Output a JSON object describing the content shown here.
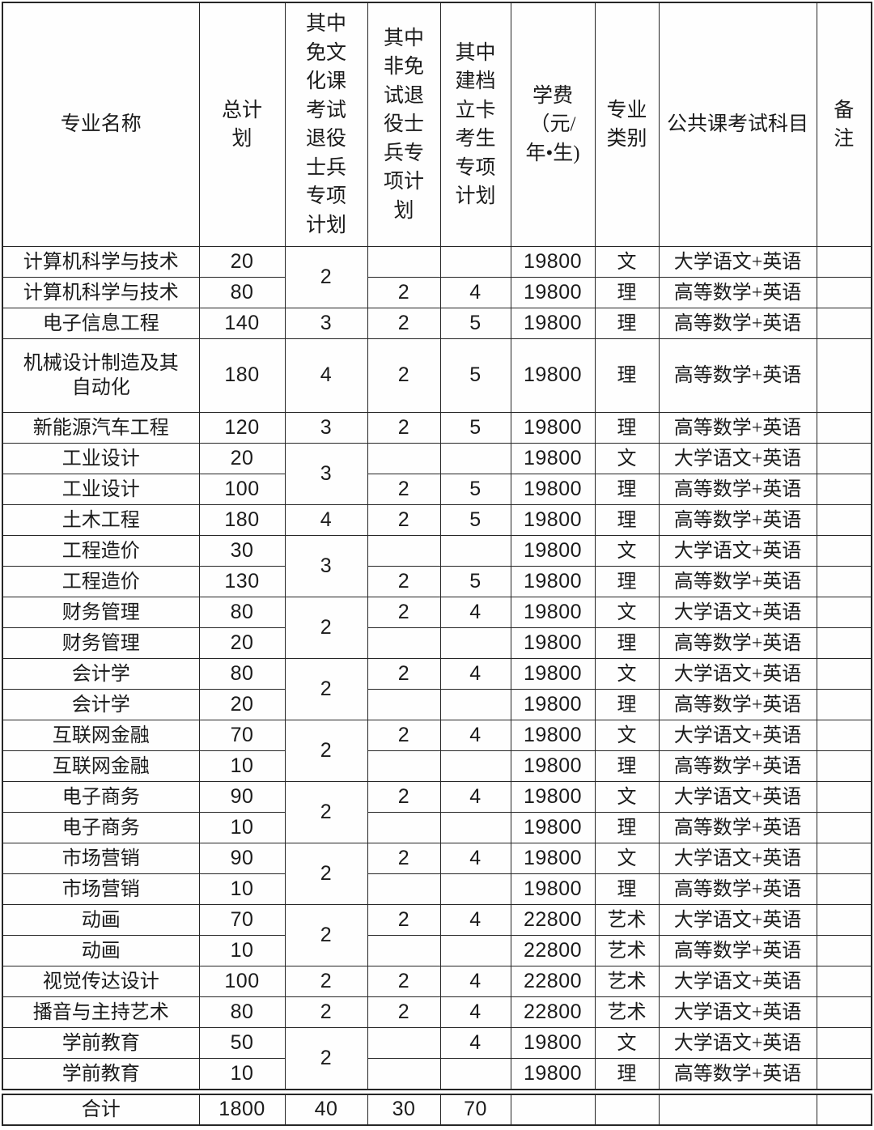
{
  "table": {
    "columns": [
      {
        "key": "major-name",
        "label": "专业名称"
      },
      {
        "key": "total-plan",
        "label": "总计\n划"
      },
      {
        "key": "exempt-veteran-plan",
        "label": "其中\n免文\n化课\n考试\n退役\n士兵\n专项\n计划"
      },
      {
        "key": "nonexempt-veteran-plan",
        "label": "其中\n非免\n试退\n役士\n兵专\n项计\n划"
      },
      {
        "key": "archive-card-plan",
        "label": "其中\n建档\n立卡\n考生\n专项\n计划"
      },
      {
        "key": "tuition",
        "label": "学费\n（元/\n年•生)"
      },
      {
        "key": "major-category",
        "label": "专业\n类别"
      },
      {
        "key": "exam-subjects",
        "label": "公共课考试科目"
      },
      {
        "key": "remarks",
        "label": "备\n注"
      }
    ],
    "rows": [
      {
        "cells": [
          {
            "t": "计算机科学与技术"
          },
          {
            "t": "20"
          },
          {
            "t": "2",
            "rs": 2
          },
          {
            "t": ""
          },
          {
            "t": ""
          },
          {
            "t": "19800"
          },
          {
            "t": "文"
          },
          {
            "t": "大学语文+英语"
          },
          {
            "t": ""
          }
        ]
      },
      {
        "cells": [
          {
            "t": "计算机科学与技术"
          },
          {
            "t": "80"
          },
          {
            "t": "2"
          },
          {
            "t": "4"
          },
          {
            "t": "19800"
          },
          {
            "t": "理"
          },
          {
            "t": "高等数学+英语"
          },
          {
            "t": ""
          }
        ]
      },
      {
        "cells": [
          {
            "t": "电子信息工程"
          },
          {
            "t": "140"
          },
          {
            "t": "3"
          },
          {
            "t": "2"
          },
          {
            "t": "5"
          },
          {
            "t": "19800"
          },
          {
            "t": "理"
          },
          {
            "t": "高等数学+英语"
          },
          {
            "t": ""
          }
        ]
      },
      {
        "cells": [
          {
            "t": "机械设计制造及其\n自动化"
          },
          {
            "t": "180"
          },
          {
            "t": "4"
          },
          {
            "t": "2"
          },
          {
            "t": "5"
          },
          {
            "t": "19800"
          },
          {
            "t": "理"
          },
          {
            "t": "高等数学+英语"
          },
          {
            "t": ""
          }
        ]
      },
      {
        "cells": [
          {
            "t": "新能源汽车工程"
          },
          {
            "t": "120"
          },
          {
            "t": "3"
          },
          {
            "t": "2"
          },
          {
            "t": "5"
          },
          {
            "t": "19800"
          },
          {
            "t": "理"
          },
          {
            "t": "高等数学+英语"
          },
          {
            "t": ""
          }
        ]
      },
      {
        "cells": [
          {
            "t": "工业设计"
          },
          {
            "t": "20"
          },
          {
            "t": "3",
            "rs": 2
          },
          {
            "t": ""
          },
          {
            "t": ""
          },
          {
            "t": "19800"
          },
          {
            "t": "文"
          },
          {
            "t": "大学语文+英语"
          },
          {
            "t": ""
          }
        ]
      },
      {
        "cells": [
          {
            "t": "工业设计"
          },
          {
            "t": "100"
          },
          {
            "t": "2"
          },
          {
            "t": "5"
          },
          {
            "t": "19800"
          },
          {
            "t": "理"
          },
          {
            "t": "高等数学+英语"
          },
          {
            "t": ""
          }
        ]
      },
      {
        "cells": [
          {
            "t": "土木工程"
          },
          {
            "t": "180"
          },
          {
            "t": "4"
          },
          {
            "t": "2"
          },
          {
            "t": "5"
          },
          {
            "t": "19800"
          },
          {
            "t": "理"
          },
          {
            "t": "高等数学+英语"
          },
          {
            "t": ""
          }
        ]
      },
      {
        "cells": [
          {
            "t": "工程造价"
          },
          {
            "t": "30"
          },
          {
            "t": "3",
            "rs": 2
          },
          {
            "t": ""
          },
          {
            "t": ""
          },
          {
            "t": "19800"
          },
          {
            "t": "文"
          },
          {
            "t": "大学语文+英语"
          },
          {
            "t": ""
          }
        ]
      },
      {
        "cells": [
          {
            "t": "工程造价"
          },
          {
            "t": "130"
          },
          {
            "t": "2"
          },
          {
            "t": "5"
          },
          {
            "t": "19800"
          },
          {
            "t": "理"
          },
          {
            "t": "高等数学+英语"
          },
          {
            "t": ""
          }
        ]
      },
      {
        "cells": [
          {
            "t": "财务管理"
          },
          {
            "t": "80"
          },
          {
            "t": "2",
            "rs": 2
          },
          {
            "t": "2"
          },
          {
            "t": "4"
          },
          {
            "t": "19800"
          },
          {
            "t": "文"
          },
          {
            "t": "大学语文+英语"
          },
          {
            "t": ""
          }
        ]
      },
      {
        "cells": [
          {
            "t": "财务管理"
          },
          {
            "t": "20"
          },
          {
            "t": ""
          },
          {
            "t": ""
          },
          {
            "t": "19800"
          },
          {
            "t": "理"
          },
          {
            "t": "高等数学+英语"
          },
          {
            "t": ""
          }
        ]
      },
      {
        "cells": [
          {
            "t": "会计学"
          },
          {
            "t": "80"
          },
          {
            "t": "2",
            "rs": 2
          },
          {
            "t": "2"
          },
          {
            "t": "4"
          },
          {
            "t": "19800"
          },
          {
            "t": "文"
          },
          {
            "t": "大学语文+英语"
          },
          {
            "t": ""
          }
        ]
      },
      {
        "cells": [
          {
            "t": "会计学"
          },
          {
            "t": "20"
          },
          {
            "t": ""
          },
          {
            "t": ""
          },
          {
            "t": "19800"
          },
          {
            "t": "理"
          },
          {
            "t": "高等数学+英语"
          },
          {
            "t": ""
          }
        ]
      },
      {
        "cells": [
          {
            "t": "互联网金融"
          },
          {
            "t": "70"
          },
          {
            "t": "2",
            "rs": 2
          },
          {
            "t": "2"
          },
          {
            "t": "4"
          },
          {
            "t": "19800"
          },
          {
            "t": "文"
          },
          {
            "t": "大学语文+英语"
          },
          {
            "t": ""
          }
        ]
      },
      {
        "cells": [
          {
            "t": "互联网金融"
          },
          {
            "t": "10"
          },
          {
            "t": ""
          },
          {
            "t": ""
          },
          {
            "t": "19800"
          },
          {
            "t": "理"
          },
          {
            "t": "高等数学+英语"
          },
          {
            "t": ""
          }
        ]
      },
      {
        "cells": [
          {
            "t": "电子商务"
          },
          {
            "t": "90"
          },
          {
            "t": "2",
            "rs": 2
          },
          {
            "t": "2"
          },
          {
            "t": "4"
          },
          {
            "t": "19800"
          },
          {
            "t": "文"
          },
          {
            "t": "大学语文+英语"
          },
          {
            "t": ""
          }
        ]
      },
      {
        "cells": [
          {
            "t": "电子商务"
          },
          {
            "t": "10"
          },
          {
            "t": ""
          },
          {
            "t": ""
          },
          {
            "t": "19800"
          },
          {
            "t": "理"
          },
          {
            "t": "高等数学+英语"
          },
          {
            "t": ""
          }
        ]
      },
      {
        "cells": [
          {
            "t": "市场营销"
          },
          {
            "t": "90"
          },
          {
            "t": "2",
            "rs": 2
          },
          {
            "t": "2"
          },
          {
            "t": "4"
          },
          {
            "t": "19800"
          },
          {
            "t": "文"
          },
          {
            "t": "大学语文+英语"
          },
          {
            "t": ""
          }
        ]
      },
      {
        "cells": [
          {
            "t": "市场营销"
          },
          {
            "t": "10"
          },
          {
            "t": ""
          },
          {
            "t": ""
          },
          {
            "t": "19800"
          },
          {
            "t": "理"
          },
          {
            "t": "高等数学+英语"
          },
          {
            "t": ""
          }
        ]
      },
      {
        "cells": [
          {
            "t": "动画"
          },
          {
            "t": "70"
          },
          {
            "t": "2",
            "rs": 2
          },
          {
            "t": "2"
          },
          {
            "t": "4"
          },
          {
            "t": "22800"
          },
          {
            "t": "艺术"
          },
          {
            "t": "大学语文+英语"
          },
          {
            "t": ""
          }
        ]
      },
      {
        "cells": [
          {
            "t": "动画"
          },
          {
            "t": "10"
          },
          {
            "t": ""
          },
          {
            "t": ""
          },
          {
            "t": "22800"
          },
          {
            "t": "艺术"
          },
          {
            "t": "高等数学+英语"
          },
          {
            "t": ""
          }
        ]
      },
      {
        "cells": [
          {
            "t": "视觉传达设计"
          },
          {
            "t": "100"
          },
          {
            "t": "2"
          },
          {
            "t": "2"
          },
          {
            "t": "4"
          },
          {
            "t": "22800"
          },
          {
            "t": "艺术"
          },
          {
            "t": "大学语文+英语"
          },
          {
            "t": ""
          }
        ]
      },
      {
        "cells": [
          {
            "t": "播音与主持艺术"
          },
          {
            "t": "80"
          },
          {
            "t": "2"
          },
          {
            "t": "2"
          },
          {
            "t": "4"
          },
          {
            "t": "22800"
          },
          {
            "t": "艺术"
          },
          {
            "t": "大学语文+英语"
          },
          {
            "t": ""
          }
        ]
      },
      {
        "cells": [
          {
            "t": "学前教育"
          },
          {
            "t": "50"
          },
          {
            "t": "2",
            "rs": 2
          },
          {
            "t": ""
          },
          {
            "t": "4"
          },
          {
            "t": "19800"
          },
          {
            "t": "文"
          },
          {
            "t": "大学语文+英语"
          },
          {
            "t": ""
          }
        ]
      },
      {
        "cells": [
          {
            "t": "学前教育"
          },
          {
            "t": "10"
          },
          {
            "t": ""
          },
          {
            "t": ""
          },
          {
            "t": "19800"
          },
          {
            "t": "理"
          },
          {
            "t": "高等数学+英语"
          },
          {
            "t": ""
          }
        ]
      }
    ],
    "total_row": {
      "cells": [
        {
          "t": "合计"
        },
        {
          "t": "1800"
        },
        {
          "t": "40"
        },
        {
          "t": "30"
        },
        {
          "t": "70"
        },
        {
          "t": ""
        },
        {
          "t": ""
        },
        {
          "t": ""
        },
        {
          "t": ""
        }
      ]
    }
  }
}
